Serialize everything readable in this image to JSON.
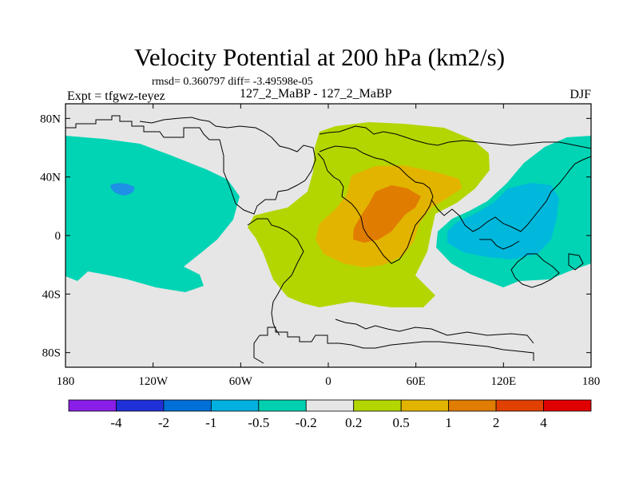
{
  "title": "Velocity Potential at 200 hPa (km2/s)",
  "stats_text": "rmsd= 0.360797 diff= -3.49598e-05",
  "experiment_label": "Expt = tfgwz-teyez",
  "cases_label": "127_2_MaBP - 127_2_MaBP",
  "season_label": "DJF",
  "map": {
    "lon_range": [
      -180,
      180
    ],
    "lat_range": [
      -90,
      90
    ],
    "y_ticks": [
      {
        "lat": 80,
        "label": "80N"
      },
      {
        "lat": 40,
        "label": "40N"
      },
      {
        "lat": 0,
        "label": "0"
      },
      {
        "lat": -40,
        "label": "40S"
      },
      {
        "lat": -80,
        "label": "80S"
      }
    ],
    "x_ticks": [
      {
        "lon": -180,
        "label": "180"
      },
      {
        "lon": -120,
        "label": "120W"
      },
      {
        "lon": -60,
        "label": "60W"
      },
      {
        "lon": 0,
        "label": "0"
      },
      {
        "lon": 60,
        "label": "60E"
      },
      {
        "lon": 120,
        "label": "120E"
      },
      {
        "lon": 180,
        "label": "180"
      }
    ],
    "fields": [
      {
        "name": "positive-0.2-to-0.5",
        "color": "#b3d600"
      },
      {
        "name": "positive-0.5-to-1",
        "color": "#e2b400"
      },
      {
        "name": "positive-1-to-2",
        "color": "#e07c00"
      },
      {
        "name": "negative-0.2-to-0.5",
        "color": "#00d4b4"
      },
      {
        "name": "negative-0.5-to-1",
        "color": "#00b8dc"
      },
      {
        "name": "negative-1-to-2",
        "color": "#1e90e6"
      }
    ]
  },
  "colorbar": {
    "colors": [
      "#8a1ee8",
      "#2030d8",
      "#0070d8",
      "#00b0e0",
      "#00d0b0",
      "#e6e6e6",
      "#b3d600",
      "#e2b400",
      "#e07c00",
      "#e04000",
      "#e00000"
    ],
    "labels": [
      "-4",
      "-2",
      "-1",
      "-0.5",
      "-0.2",
      "0.2",
      "0.5",
      "1",
      "2",
      "4"
    ]
  }
}
